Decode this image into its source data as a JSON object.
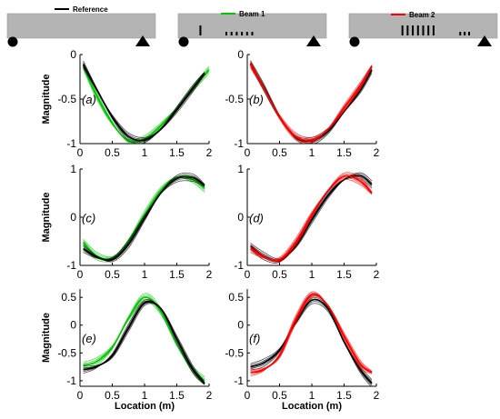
{
  "legend": [
    {
      "name": "Reference",
      "color": "#000000"
    },
    {
      "name": "Beam 1",
      "color": "#00c800"
    },
    {
      "name": "Beam 2",
      "color": "#ff0000"
    }
  ],
  "colors": {
    "reference": "#000000",
    "beam1": "#00c800",
    "beam2": "#ff0000",
    "beam_fill": "#b4b4b4"
  },
  "beams": [
    {
      "label": "Reference",
      "damage_locations": []
    },
    {
      "label": "Beam 1",
      "damage_locations": [
        0.3,
        0.65,
        0.72,
        0.79,
        0.86,
        0.93,
        1.0
      ]
    },
    {
      "label": "Beam 2",
      "damage_locations": [
        0.72,
        0.79,
        0.86,
        0.93,
        1.0,
        1.07,
        1.14,
        1.5,
        1.56,
        1.62
      ]
    }
  ],
  "chart_data": [
    {
      "type": "line",
      "panel_label": "(a)",
      "ylabel": "Magnitude",
      "xlabel": "",
      "xlim": [
        0,
        2
      ],
      "ylim": [
        -1,
        0
      ],
      "xticks": [
        0,
        0.5,
        1,
        1.5,
        2
      ],
      "xtick_labels": [
        "0",
        "0.5",
        "1",
        "1.5",
        "2"
      ],
      "yticks": [
        -1,
        -0.5,
        0
      ],
      "ytick_labels": [
        "-1",
        "-0.5",
        "0"
      ],
      "series": [
        {
          "color": "#00c800",
          "x": [
            0.05,
            0.25,
            0.5,
            0.75,
            1.0,
            1.25,
            1.5,
            1.75,
            2.0
          ],
          "y": [
            -0.13,
            -0.45,
            -0.77,
            -0.97,
            -0.95,
            -0.8,
            -0.6,
            -0.38,
            -0.17
          ]
        },
        {
          "color": "#000000",
          "x": [
            0.05,
            0.25,
            0.5,
            0.75,
            1.0,
            1.25,
            1.5,
            1.75,
            1.93
          ],
          "y": [
            -0.11,
            -0.38,
            -0.7,
            -0.92,
            -0.96,
            -0.84,
            -0.62,
            -0.38,
            -0.21
          ]
        }
      ]
    },
    {
      "type": "line",
      "panel_label": "(b)",
      "ylabel": "",
      "xlabel": "",
      "xlim": [
        0,
        2
      ],
      "ylim": [
        -1,
        0
      ],
      "xticks": [
        0,
        0.5,
        1,
        1.5,
        2
      ],
      "xtick_labels": [
        "0",
        "0.5",
        "1",
        "1.5",
        "2"
      ],
      "yticks": [
        -1,
        -0.5,
        0
      ],
      "ytick_labels": [
        "-1",
        "-0.5",
        "0"
      ],
      "series": [
        {
          "color": "#000000",
          "x": [
            0.05,
            0.25,
            0.5,
            0.75,
            1.0,
            1.25,
            1.5,
            1.75,
            1.93
          ],
          "y": [
            -0.1,
            -0.36,
            -0.7,
            -0.93,
            -0.97,
            -0.86,
            -0.64,
            -0.4,
            -0.17
          ]
        },
        {
          "color": "#ff0000",
          "x": [
            0.05,
            0.25,
            0.5,
            0.75,
            1.0,
            1.25,
            1.5,
            1.75,
            1.93
          ],
          "y": [
            -0.11,
            -0.37,
            -0.7,
            -0.92,
            -0.96,
            -0.84,
            -0.6,
            -0.35,
            -0.13
          ]
        }
      ]
    },
    {
      "type": "line",
      "panel_label": "(c)",
      "ylabel": "Magnitude",
      "xlabel": "",
      "xlim": [
        0,
        2
      ],
      "ylim": [
        -1,
        1
      ],
      "xticks": [
        0,
        0.5,
        1,
        1.5,
        2
      ],
      "xtick_labels": [
        "0",
        "0.5",
        "1",
        "1.5",
        "2"
      ],
      "yticks": [
        -1,
        0,
        1
      ],
      "ytick_labels": [
        "-1",
        "0",
        "1"
      ],
      "series": [
        {
          "color": "#00c800",
          "x": [
            0.05,
            0.25,
            0.5,
            0.75,
            1.0,
            1.25,
            1.5,
            1.75,
            1.93
          ],
          "y": [
            -0.52,
            -0.8,
            -0.85,
            -0.5,
            0.05,
            0.55,
            0.83,
            0.78,
            0.6
          ]
        },
        {
          "color": "#000000",
          "x": [
            0.05,
            0.25,
            0.5,
            0.75,
            1.0,
            1.25,
            1.5,
            1.75,
            1.93
          ],
          "y": [
            -0.65,
            -0.82,
            -0.88,
            -0.56,
            -0.02,
            0.5,
            0.8,
            0.82,
            0.66
          ]
        }
      ]
    },
    {
      "type": "line",
      "panel_label": "(d)",
      "ylabel": "",
      "xlabel": "",
      "xlim": [
        0,
        2
      ],
      "ylim": [
        -1,
        1
      ],
      "xticks": [
        0,
        0.5,
        1,
        1.5,
        2
      ],
      "xtick_labels": [
        "0",
        "0.5",
        "1",
        "1.5",
        "2"
      ],
      "yticks": [
        -1,
        0,
        1
      ],
      "ytick_labels": [
        "-1",
        "0",
        "1"
      ],
      "series": [
        {
          "color": "#000000",
          "x": [
            0.05,
            0.25,
            0.5,
            0.75,
            1.0,
            1.25,
            1.5,
            1.75,
            1.93
          ],
          "y": [
            -0.6,
            -0.8,
            -0.9,
            -0.6,
            -0.05,
            0.45,
            0.78,
            0.86,
            0.68
          ]
        },
        {
          "color": "#ff0000",
          "x": [
            0.05,
            0.25,
            0.5,
            0.75,
            1.0,
            1.25,
            1.5,
            1.75,
            1.93
          ],
          "y": [
            -0.65,
            -0.82,
            -0.88,
            -0.52,
            0.05,
            0.55,
            0.85,
            0.75,
            0.5
          ]
        }
      ]
    },
    {
      "type": "line",
      "panel_label": "(e)",
      "ylabel": "Magnitude",
      "xlabel": "Location (m)",
      "xlim": [
        0,
        2
      ],
      "ylim": [
        -1.1,
        0.65
      ],
      "xticks": [
        0,
        0.5,
        1,
        1.5,
        2
      ],
      "xtick_labels": [
        "0",
        "0.5",
        "1",
        "1.5",
        "2"
      ],
      "yticks": [
        -1,
        -0.5,
        0,
        0.5
      ],
      "ytick_labels": [
        "-1",
        "-0.5",
        "0",
        "0.5"
      ],
      "series": [
        {
          "color": "#00c800",
          "x": [
            0.05,
            0.25,
            0.5,
            0.75,
            1.0,
            1.25,
            1.5,
            1.75,
            1.93
          ],
          "y": [
            -0.72,
            -0.66,
            -0.4,
            0.12,
            0.5,
            0.25,
            -0.35,
            -0.8,
            -1.0
          ]
        },
        {
          "color": "#000000",
          "x": [
            0.05,
            0.25,
            0.5,
            0.75,
            1.0,
            1.25,
            1.5,
            1.75,
            1.93
          ],
          "y": [
            -0.8,
            -0.75,
            -0.55,
            -0.05,
            0.4,
            0.3,
            -0.25,
            -0.8,
            -1.05
          ]
        }
      ]
    },
    {
      "type": "line",
      "panel_label": "(f)",
      "ylabel": "",
      "xlabel": "Location (m)",
      "xlim": [
        0,
        2
      ],
      "ylim": [
        -1.1,
        0.65
      ],
      "xticks": [
        0,
        0.5,
        1,
        1.5,
        2
      ],
      "xtick_labels": [
        "0",
        "0.5",
        "1",
        "1.5",
        "2"
      ],
      "yticks": [
        -1,
        -0.5,
        0,
        0.5
      ],
      "ytick_labels": [
        "-1",
        "-0.5",
        "0",
        "0.5"
      ],
      "series": [
        {
          "color": "#000000",
          "x": [
            0.05,
            0.25,
            0.5,
            0.75,
            1.0,
            1.25,
            1.5,
            1.75,
            1.93
          ],
          "y": [
            -0.75,
            -0.68,
            -0.45,
            0.05,
            0.45,
            0.3,
            -0.3,
            -0.8,
            -1.05
          ]
        },
        {
          "color": "#ff0000",
          "x": [
            0.05,
            0.25,
            0.5,
            0.75,
            1.0,
            1.25,
            1.5,
            1.75,
            1.93
          ],
          "y": [
            -0.85,
            -0.8,
            -0.55,
            0.1,
            0.55,
            0.35,
            -0.2,
            -0.7,
            -0.85
          ]
        }
      ]
    }
  ]
}
